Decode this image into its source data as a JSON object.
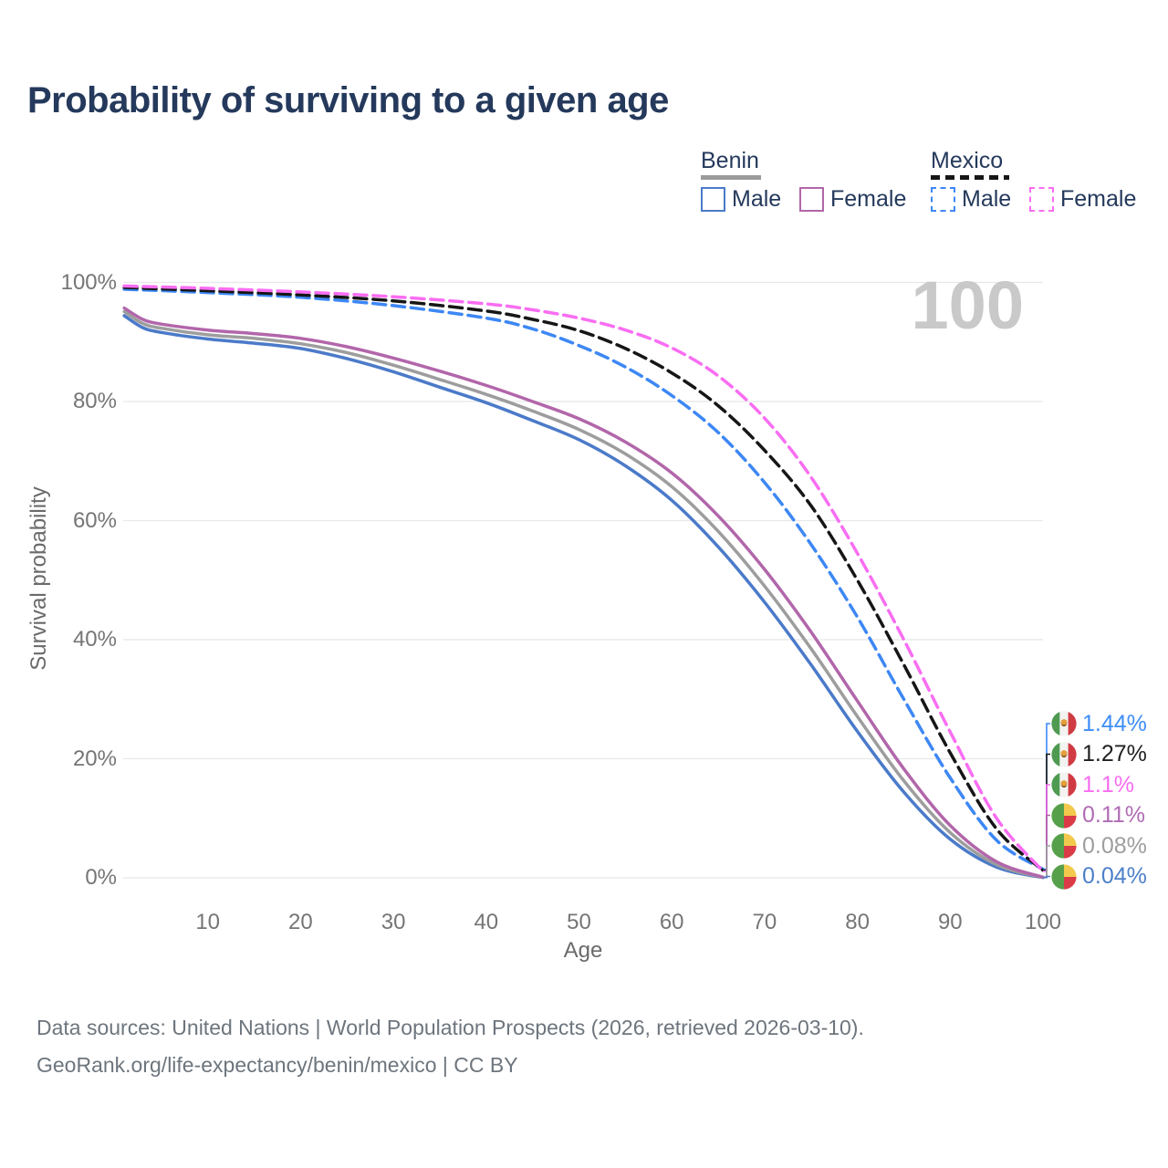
{
  "title": "Probability of surviving to a given age",
  "watermark_age": "100",
  "legend": {
    "groups": [
      {
        "name": "Benin",
        "line_style": "solid",
        "underline_color": "#9b9b9b",
        "items": [
          {
            "label": "Male",
            "color": "#4b7ac9"
          },
          {
            "label": "Female",
            "color": "#b266aa"
          }
        ]
      },
      {
        "name": "Mexico",
        "line_style": "dashed",
        "underline_color": "#161616",
        "items": [
          {
            "label": "Male",
            "color": "#3d87f5"
          },
          {
            "label": "Female",
            "color": "#f96df2"
          }
        ]
      }
    ]
  },
  "axes": {
    "y_title": "Survival probability",
    "x_title": "Age",
    "y_ticks": [
      {
        "pct": 0,
        "label": "0%"
      },
      {
        "pct": 20,
        "label": "20%"
      },
      {
        "pct": 40,
        "label": "40%"
      },
      {
        "pct": 60,
        "label": "60%"
      },
      {
        "pct": 80,
        "label": "80%"
      },
      {
        "pct": 100,
        "label": "100%"
      }
    ],
    "x_ticks": [
      {
        "age": 10,
        "label": "10"
      },
      {
        "age": 20,
        "label": "20"
      },
      {
        "age": 30,
        "label": "30"
      },
      {
        "age": 40,
        "label": "40"
      },
      {
        "age": 50,
        "label": "50"
      },
      {
        "age": 60,
        "label": "60"
      },
      {
        "age": 70,
        "label": "70"
      },
      {
        "age": 80,
        "label": "80"
      },
      {
        "age": 90,
        "label": "90"
      },
      {
        "age": 100,
        "label": "100"
      }
    ]
  },
  "chart_data": {
    "type": "line",
    "title": "Probability of surviving to a given age",
    "xlabel": "Age",
    "ylabel": "Survival probability",
    "x_range": [
      0,
      100
    ],
    "y_range_pct": [
      0,
      100
    ],
    "grid": "horizontal",
    "legend_position": "top-right",
    "hovered_age": 100,
    "series": [
      {
        "id": "benin-male",
        "country": "Benin",
        "sex": "Male",
        "color": "#4b7ac9",
        "dash": false,
        "points": [
          [
            1,
            94.4
          ],
          [
            3,
            92.4
          ],
          [
            5,
            91.6
          ],
          [
            10,
            90.5
          ],
          [
            15,
            89.8
          ],
          [
            20,
            88.9
          ],
          [
            25,
            87.2
          ],
          [
            30,
            85.0
          ],
          [
            35,
            82.4
          ],
          [
            40,
            79.8
          ],
          [
            45,
            76.8
          ],
          [
            50,
            73.6
          ],
          [
            55,
            69.2
          ],
          [
            60,
            63.4
          ],
          [
            65,
            55.6
          ],
          [
            70,
            46.3
          ],
          [
            75,
            35.8
          ],
          [
            80,
            24.6
          ],
          [
            85,
            14.4
          ],
          [
            90,
            6.5
          ],
          [
            95,
            1.8
          ],
          [
            100,
            0.04
          ]
        ]
      },
      {
        "id": "benin-total",
        "country": "Benin",
        "sex": "Both",
        "color": "#9d9d9d",
        "dash": false,
        "points": [
          [
            1,
            95.1
          ],
          [
            3,
            93.1
          ],
          [
            5,
            92.3
          ],
          [
            10,
            91.2
          ],
          [
            15,
            90.6
          ],
          [
            20,
            89.7
          ],
          [
            25,
            88.2
          ],
          [
            30,
            86.1
          ],
          [
            35,
            83.7
          ],
          [
            40,
            81.2
          ],
          [
            45,
            78.4
          ],
          [
            50,
            75.3
          ],
          [
            55,
            71.2
          ],
          [
            60,
            65.7
          ],
          [
            65,
            58.2
          ],
          [
            70,
            49.0
          ],
          [
            75,
            38.5
          ],
          [
            80,
            27.1
          ],
          [
            85,
            16.3
          ],
          [
            90,
            7.6
          ],
          [
            95,
            2.2
          ],
          [
            100,
            0.08
          ]
        ]
      },
      {
        "id": "benin-female",
        "country": "Benin",
        "sex": "Female",
        "color": "#b266aa",
        "dash": false,
        "points": [
          [
            1,
            95.7
          ],
          [
            3,
            93.8
          ],
          [
            5,
            93.0
          ],
          [
            10,
            92.0
          ],
          [
            15,
            91.4
          ],
          [
            20,
            90.6
          ],
          [
            25,
            89.2
          ],
          [
            30,
            87.3
          ],
          [
            35,
            85.1
          ],
          [
            40,
            82.7
          ],
          [
            45,
            80.0
          ],
          [
            50,
            77.1
          ],
          [
            55,
            73.2
          ],
          [
            60,
            68.0
          ],
          [
            65,
            60.8
          ],
          [
            70,
            51.8
          ],
          [
            75,
            41.3
          ],
          [
            80,
            29.7
          ],
          [
            85,
            18.3
          ],
          [
            90,
            8.8
          ],
          [
            95,
            2.7
          ],
          [
            100,
            0.11
          ]
        ]
      },
      {
        "id": "mexico-male",
        "country": "Mexico",
        "sex": "Male",
        "color": "#3d87f5",
        "dash": true,
        "points": [
          [
            1,
            98.85
          ],
          [
            10,
            98.3
          ],
          [
            20,
            97.5
          ],
          [
            30,
            96.1
          ],
          [
            40,
            94.0
          ],
          [
            45,
            92.2
          ],
          [
            50,
            89.4
          ],
          [
            55,
            85.8
          ],
          [
            60,
            81.0
          ],
          [
            65,
            74.8
          ],
          [
            70,
            66.4
          ],
          [
            75,
            56.0
          ],
          [
            80,
            43.8
          ],
          [
            85,
            30.0
          ],
          [
            90,
            16.8
          ],
          [
            95,
            6.3
          ],
          [
            100,
            1.44
          ]
        ]
      },
      {
        "id": "mexico-total",
        "country": "Mexico",
        "sex": "Both",
        "color": "#161616",
        "dash": true,
        "points": [
          [
            1,
            99.15
          ],
          [
            10,
            98.6
          ],
          [
            20,
            97.9
          ],
          [
            30,
            96.9
          ],
          [
            40,
            95.2
          ],
          [
            45,
            93.8
          ],
          [
            50,
            91.9
          ],
          [
            55,
            88.9
          ],
          [
            60,
            84.8
          ],
          [
            65,
            79.3
          ],
          [
            70,
            71.8
          ],
          [
            75,
            62.5
          ],
          [
            80,
            50.0
          ],
          [
            85,
            35.8
          ],
          [
            90,
            21.0
          ],
          [
            95,
            8.2
          ],
          [
            100,
            1.27
          ]
        ]
      },
      {
        "id": "mexico-female",
        "country": "Mexico",
        "sex": "Female",
        "color": "#f96df2",
        "dash": true,
        "points": [
          [
            1,
            99.4
          ],
          [
            10,
            99.0
          ],
          [
            20,
            98.4
          ],
          [
            30,
            97.6
          ],
          [
            40,
            96.4
          ],
          [
            45,
            95.4
          ],
          [
            50,
            94.0
          ],
          [
            55,
            92.0
          ],
          [
            60,
            89.0
          ],
          [
            65,
            84.3
          ],
          [
            70,
            77.2
          ],
          [
            75,
            67.3
          ],
          [
            80,
            54.5
          ],
          [
            85,
            40.0
          ],
          [
            90,
            24.5
          ],
          [
            95,
            10.0
          ],
          [
            100,
            1.1
          ]
        ]
      }
    ]
  },
  "end_labels": [
    {
      "flag": "mexico",
      "text": "1.44%",
      "value_pct": 1.44,
      "text_color": "#3e8ef7",
      "line_color": "#3d87f5"
    },
    {
      "flag": "mexico",
      "text": "1.27%",
      "value_pct": 1.27,
      "text_color": "#1f1f1f",
      "line_color": "#161616"
    },
    {
      "flag": "mexico",
      "text": "1.1%",
      "value_pct": 1.1,
      "text_color": "#f96df2",
      "line_color": "#f96df2"
    },
    {
      "flag": "benin",
      "text": "0.11%",
      "value_pct": 0.11,
      "text_color": "#b06cb4",
      "line_color": "#b266aa"
    },
    {
      "flag": "benin",
      "text": "0.08%",
      "value_pct": 0.08,
      "text_color": "#9e9e9e",
      "line_color": "#9d9d9d"
    },
    {
      "flag": "benin",
      "text": "0.04%",
      "value_pct": 0.04,
      "text_color": "#4d80c9",
      "line_color": "#4b7ac9"
    }
  ],
  "source": {
    "line1": "Data sources: United Nations | World Population Prospects (2026, retrieved 2026-03-10).",
    "line2": "GeoRank.org/life-expectancy/benin/mexico | CC BY"
  }
}
